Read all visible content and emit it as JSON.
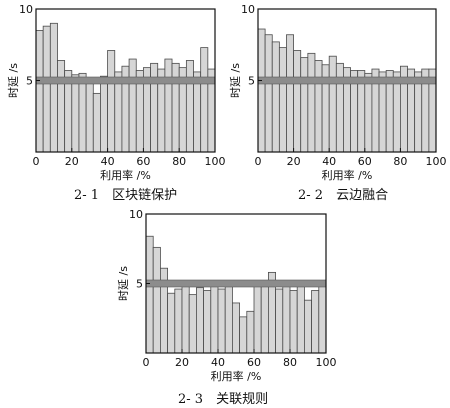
{
  "colors": {
    "bar": "#d6d6d6",
    "bar_edge": "#4a4a4a",
    "band": "#8c8c8c",
    "axis": "#111111"
  },
  "chart_data": [
    {
      "type": "bar",
      "caption": "2- 1　区块链保护",
      "xlabel": "利用率 /%",
      "ylabel": "时延 /s",
      "xlim": [
        0,
        100
      ],
      "ylim": [
        0,
        10
      ],
      "xticks": [
        "0",
        "20",
        "40",
        "60",
        "80",
        "100"
      ],
      "yticks": [
        "5",
        "10"
      ],
      "reference_band": 5,
      "x": [
        0,
        4.17,
        8.33,
        12.5,
        16.67,
        20.83,
        25,
        29.17,
        33.33,
        37.5,
        41.67,
        45.83,
        50,
        54.17,
        58.33,
        62.5,
        66.67,
        70.83,
        75,
        79.17,
        83.33,
        87.5,
        91.67,
        95.83,
        100
      ],
      "values": [
        8.5,
        8.8,
        9.0,
        6.4,
        5.7,
        5.4,
        5.5,
        5.2,
        4.1,
        5.3,
        7.1,
        5.6,
        6.0,
        6.5,
        5.7,
        5.9,
        6.2,
        5.8,
        6.5,
        6.2,
        5.9,
        6.4,
        5.6,
        7.3,
        5.8
      ]
    },
    {
      "type": "bar",
      "caption": "2- 2　云边融合",
      "xlabel": "利用率 /%",
      "ylabel": "时延 /s",
      "xlim": [
        0,
        100
      ],
      "ylim": [
        0,
        10
      ],
      "xticks": [
        "0",
        "20",
        "40",
        "60",
        "80",
        "100"
      ],
      "yticks": [
        "5",
        "10"
      ],
      "reference_band": 5,
      "x": [
        0,
        4.17,
        8.33,
        12.5,
        16.67,
        20.83,
        25,
        29.17,
        33.33,
        37.5,
        41.67,
        45.83,
        50,
        54.17,
        58.33,
        62.5,
        66.67,
        70.83,
        75,
        79.17,
        83.33,
        87.5,
        91.67,
        95.83,
        100
      ],
      "values": [
        8.6,
        8.2,
        7.7,
        7.3,
        8.2,
        7.1,
        6.6,
        6.9,
        6.4,
        6.1,
        6.7,
        6.2,
        5.9,
        5.7,
        5.7,
        5.5,
        5.8,
        5.6,
        5.7,
        5.6,
        6.0,
        5.8,
        5.6,
        5.8,
        5.8
      ]
    },
    {
      "type": "bar",
      "caption": "2- 3　关联规则",
      "xlabel": "利用率 /%",
      "ylabel": "时延 /s",
      "xlim": [
        0,
        100
      ],
      "ylim": [
        0,
        10
      ],
      "xticks": [
        "0",
        "20",
        "40",
        "60",
        "80",
        "100"
      ],
      "yticks": [
        "5",
        "10"
      ],
      "reference_band": 5,
      "x": [
        0,
        4.17,
        8.33,
        12.5,
        16.67,
        20.83,
        25,
        29.17,
        33.33,
        37.5,
        41.67,
        45.83,
        50,
        54.17,
        58.33,
        62.5,
        66.67,
        70.83,
        75,
        79.17,
        83.33,
        87.5,
        91.67,
        95.83,
        100
      ],
      "values": [
        8.4,
        7.6,
        6.1,
        4.3,
        4.6,
        4.8,
        4.2,
        4.7,
        4.5,
        4.8,
        4.6,
        4.9,
        3.6,
        2.6,
        3.0,
        4.8,
        4.8,
        5.8,
        4.6,
        4.9,
        4.5,
        4.8,
        3.8,
        4.5,
        4.9
      ]
    }
  ]
}
